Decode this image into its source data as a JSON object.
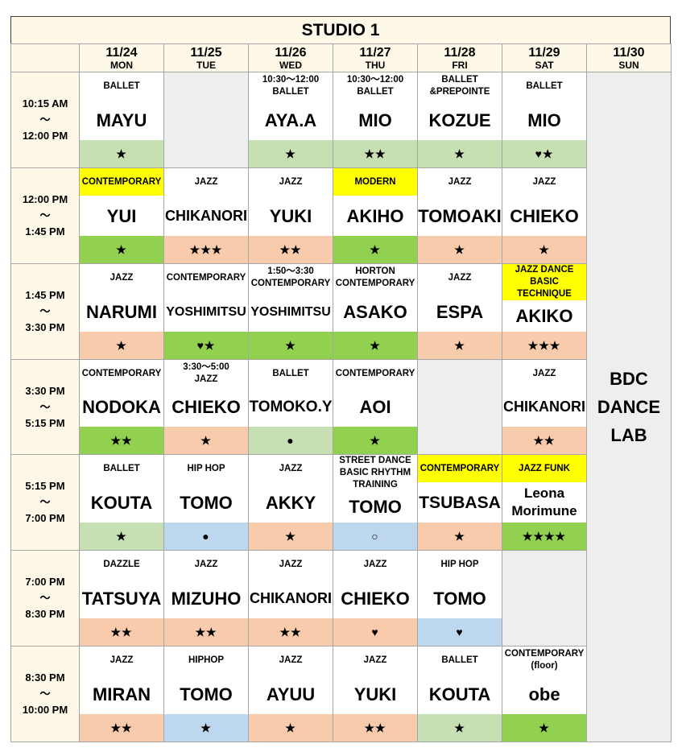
{
  "header": {
    "title": "STUDIO 1"
  },
  "days": [
    {
      "date": "11/24",
      "day": "MON"
    },
    {
      "date": "11/25",
      "day": "TUE"
    },
    {
      "date": "11/26",
      "day": "WED"
    },
    {
      "date": "11/27",
      "day": "THU"
    },
    {
      "date": "11/28",
      "day": "FRI"
    },
    {
      "date": "11/29",
      "day": "SAT"
    },
    {
      "date": "11/30",
      "day": "SUN"
    }
  ],
  "sunday": [
    "BDC",
    "DANCE",
    "LAB"
  ],
  "rows": [
    {
      "time": [
        "10:15 AM",
        "～",
        "12:00 PM"
      ],
      "cells": [
        {
          "label": [
            "BALLET"
          ],
          "name": "MAYU",
          "level": "★",
          "level_color": "#c6e0b4"
        },
        null,
        {
          "label": [
            "10:30～12:00",
            "BALLET"
          ],
          "name": "AYA.A",
          "level": "★",
          "level_color": "#c6e0b4"
        },
        {
          "label": [
            "10:30～12:00",
            "BALLET"
          ],
          "name": "MIO",
          "level": "★★",
          "level_color": "#c6e0b4"
        },
        {
          "label": [
            "BALLET",
            "&PREPOINTE"
          ],
          "name": "KOZUE",
          "level": "★",
          "level_color": "#c6e0b4"
        },
        {
          "label": [
            "BALLET"
          ],
          "name": "MIO",
          "level": "♥★",
          "level_color": "#c6e0b4"
        }
      ]
    },
    {
      "time": [
        "12:00 PM",
        "～",
        "1:45 PM"
      ],
      "cells": [
        {
          "label": [
            "CONTEMPORARY"
          ],
          "label_color": "#ffff00",
          "name": "YUI",
          "level": "★",
          "level_color": "#92d050"
        },
        {
          "label": [
            "JAZZ"
          ],
          "name": "CHIKANORI",
          "level": "★★★",
          "level_color": "#f8cbad"
        },
        {
          "label": [
            "JAZZ"
          ],
          "name": "YUKI",
          "level": "★★",
          "level_color": "#f8cbad"
        },
        {
          "label": [
            "MODERN"
          ],
          "label_color": "#ffff00",
          "name": "AKIHO",
          "level": "★",
          "level_color": "#92d050"
        },
        {
          "label": [
            "JAZZ"
          ],
          "name": "TOMOAKI",
          "level": "★",
          "level_color": "#f8cbad"
        },
        {
          "label": [
            "JAZZ"
          ],
          "name": "CHIEKO",
          "level": "★",
          "level_color": "#f8cbad"
        }
      ]
    },
    {
      "time": [
        "1:45 PM",
        "～",
        "3:30 PM"
      ],
      "cells": [
        {
          "label": [
            "JAZZ"
          ],
          "name": "NARUMI",
          "level": "★",
          "level_color": "#f8cbad"
        },
        {
          "label": [
            "CONTEMPORARY"
          ],
          "name": "YOSHIMITSU",
          "level": "♥★",
          "level_color": "#92d050"
        },
        {
          "label": [
            "1:50～3:30",
            "CONTEMPORARY"
          ],
          "name": "YOSHIMITSU",
          "level": "★",
          "level_color": "#92d050"
        },
        {
          "label": [
            "HORTON",
            "CONTEMPORARY"
          ],
          "name": "ASAKO",
          "level": "★",
          "level_color": "#92d050"
        },
        {
          "label": [
            "JAZZ"
          ],
          "name": "ESPA",
          "level": "★",
          "level_color": "#f8cbad"
        },
        {
          "label": [
            "JAZZ DANCE",
            "BASIC TECHNIQUE"
          ],
          "label_color": "#ffff00",
          "name": "AKIKO",
          "level": "★★★",
          "level_color": "#f8cbad"
        }
      ]
    },
    {
      "time": [
        "3:30 PM",
        "～",
        "5:15 PM"
      ],
      "cells": [
        {
          "label": [
            "CONTEMPORARY"
          ],
          "name": "NODOKA",
          "level": "★★",
          "level_color": "#92d050"
        },
        {
          "label": [
            "3:30～5:00",
            "JAZZ"
          ],
          "name": "CHIEKO",
          "level": "★",
          "level_color": "#f8cbad"
        },
        {
          "label": [
            "BALLET"
          ],
          "name": "TOMOKO.Y",
          "level": "●",
          "level_color": "#c6e0b4"
        },
        {
          "label": [
            "CONTEMPORARY"
          ],
          "name": "AOI",
          "level": "★",
          "level_color": "#92d050"
        },
        null,
        {
          "label": [
            "JAZZ"
          ],
          "name": "CHIKANORI",
          "level": "★★",
          "level_color": "#f8cbad"
        }
      ]
    },
    {
      "time": [
        "5:15 PM",
        "～",
        "7:00 PM"
      ],
      "cells": [
        {
          "label": [
            "BALLET"
          ],
          "name": "KOUTA",
          "level": "★",
          "level_color": "#c6e0b4"
        },
        {
          "label": [
            "HIP HOP"
          ],
          "name": "TOMO",
          "level": "●",
          "level_color": "#bdd7ee"
        },
        {
          "label": [
            "JAZZ"
          ],
          "name": "AKKY",
          "level": "★",
          "level_color": "#f8cbad"
        },
        {
          "label": [
            "STREET DANCE",
            "BASIC RHYTHM",
            "TRAINING"
          ],
          "name": "TOMO",
          "level": "○",
          "level_color": "#bdd7ee"
        },
        {
          "label": [
            "CONTEMPORARY"
          ],
          "label_color": "#ffff00",
          "name": "TSUBASA",
          "level": "★",
          "level_color": "#f8cbad"
        },
        {
          "label": [
            "JAZZ FUNK"
          ],
          "label_color": "#ffff00",
          "name": "Leona Morimune",
          "level": "★★★★",
          "level_color": "#92d050"
        }
      ]
    },
    {
      "time": [
        "7:00 PM",
        "～",
        "8:30 PM"
      ],
      "cells": [
        {
          "label": [
            "DAZZLE"
          ],
          "name": "TATSUYA",
          "level": "★★",
          "level_color": "#f8cbad"
        },
        {
          "label": [
            "JAZZ"
          ],
          "name": "MIZUHO",
          "level": "★★",
          "level_color": "#f8cbad"
        },
        {
          "label": [
            "JAZZ"
          ],
          "name": "CHIKANORI",
          "level": "★★",
          "level_color": "#f8cbad"
        },
        {
          "label": [
            "JAZZ"
          ],
          "name": "CHIEKO",
          "level": "♥",
          "level_color": "#f8cbad"
        },
        {
          "label": [
            "HIP HOP"
          ],
          "name": "TOMO",
          "level": "♥",
          "level_color": "#bdd7ee"
        },
        null
      ]
    },
    {
      "time": [
        "8:30 PM",
        "～",
        "10:00 PM"
      ],
      "cells": [
        {
          "label": [
            "JAZZ"
          ],
          "name": "MIRAN",
          "level": "★★",
          "level_color": "#f8cbad"
        },
        {
          "label": [
            "HIPHOP"
          ],
          "name": "TOMO",
          "level": "★",
          "level_color": "#bdd7ee"
        },
        {
          "label": [
            "JAZZ"
          ],
          "name": "AYUU",
          "level": "★",
          "level_color": "#f8cbad"
        },
        {
          "label": [
            "JAZZ"
          ],
          "name": "YUKI",
          "level": "★★",
          "level_color": "#f8cbad"
        },
        {
          "label": [
            "BALLET"
          ],
          "name": "KOUTA",
          "level": "★",
          "level_color": "#c6e0b4"
        },
        {
          "label": [
            "CONTEMPORARY",
            "(floor)"
          ],
          "name": "obe",
          "level": "★",
          "level_color": "#92d050"
        }
      ]
    }
  ]
}
